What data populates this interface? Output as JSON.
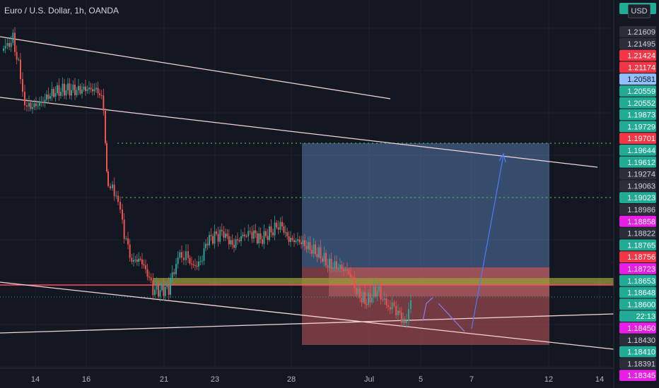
{
  "title": "Euro / U.S. Dollar, 1h, OANDA",
  "currency_button": "USD",
  "chart_data": {
    "type": "candlestick",
    "symbol": "Euro / U.S. Dollar",
    "interval": "1h",
    "source": "OANDA",
    "x_ticks": [
      "14",
      "16",
      "21",
      "23",
      "28",
      "Jul",
      "5",
      "7",
      "12",
      "14"
    ],
    "price_labels": [
      {
        "value": "1.21609",
        "color": "#d1d4dc",
        "bg": "#2a2e39"
      },
      {
        "value": "1.21495",
        "color": "#d1d4dc",
        "bg": "#2a2e39"
      },
      {
        "value": "1.21424",
        "color": "#ffffff",
        "bg": "#f23645"
      },
      {
        "value": "1.21174",
        "color": "#ffffff",
        "bg": "#f23645"
      },
      {
        "value": "1.20581",
        "color": "#131722",
        "bg": "#90bff9"
      },
      {
        "value": "1.20559",
        "color": "#ffffff",
        "bg": "#22ab94"
      },
      {
        "value": "1.20552",
        "color": "#ffffff",
        "bg": "#22ab94"
      },
      {
        "value": "1.19873",
        "color": "#ffffff",
        "bg": "#22ab94"
      },
      {
        "value": "1.19729",
        "color": "#ffffff",
        "bg": "#22ab94"
      },
      {
        "value": "1.19701",
        "color": "#ffffff",
        "bg": "#f23645"
      },
      {
        "value": "1.19644",
        "color": "#ffffff",
        "bg": "#22ab94"
      },
      {
        "value": "1.19612",
        "color": "#ffffff",
        "bg": "#22ab94"
      },
      {
        "value": "1.19274",
        "color": "#d1d4dc",
        "bg": "#2a2e39"
      },
      {
        "value": "1.19063",
        "color": "#d1d4dc",
        "bg": "#2a2e39"
      },
      {
        "value": "1.19023",
        "color": "#ffffff",
        "bg": "#22ab94"
      },
      {
        "value": "1.18986",
        "color": "#d1d4dc",
        "bg": "#2a2e39"
      },
      {
        "value": "1.18858",
        "color": "#ffffff",
        "bg": "#e91ee6"
      },
      {
        "value": "1.18822",
        "color": "#d1d4dc",
        "bg": "#2a2e39"
      },
      {
        "value": "1.18765",
        "color": "#ffffff",
        "bg": "#22ab94"
      },
      {
        "value": "1.18756",
        "color": "#ffffff",
        "bg": "#f23645"
      },
      {
        "value": "1.18723",
        "color": "#ffffff",
        "bg": "#e91ee6"
      },
      {
        "value": "1.18653",
        "color": "#ffffff",
        "bg": "#22ab94"
      },
      {
        "value": "1.18648",
        "color": "#ffffff",
        "bg": "#22ab94"
      },
      {
        "value": "1.18600",
        "color": "#ffffff",
        "bg": "#22ab94"
      },
      {
        "value": "22:13",
        "color": "#ffffff",
        "bg": "#22ab94"
      },
      {
        "value": "1.18450",
        "color": "#ffffff",
        "bg": "#e91ee6"
      },
      {
        "value": "1.18430",
        "color": "#d1d4dc",
        "bg": "#2a2e39"
      },
      {
        "value": "1.18410",
        "color": "#ffffff",
        "bg": "#22ab94"
      },
      {
        "value": "1.18391",
        "color": "#d1d4dc",
        "bg": "#2a2e39"
      },
      {
        "value": "1.18345",
        "color": "#ffffff",
        "bg": "#e91ee6"
      }
    ],
    "current_price": "1.18600",
    "countdown": "22:13",
    "position_tool": {
      "direction": "long",
      "target_zone_color": "#5b7fb8",
      "stop_zone_color": "#c2585d"
    },
    "colors": {
      "up": "#26a69a",
      "down": "#ef5350",
      "background": "#131722",
      "trendline": "#f3d5d5"
    }
  }
}
